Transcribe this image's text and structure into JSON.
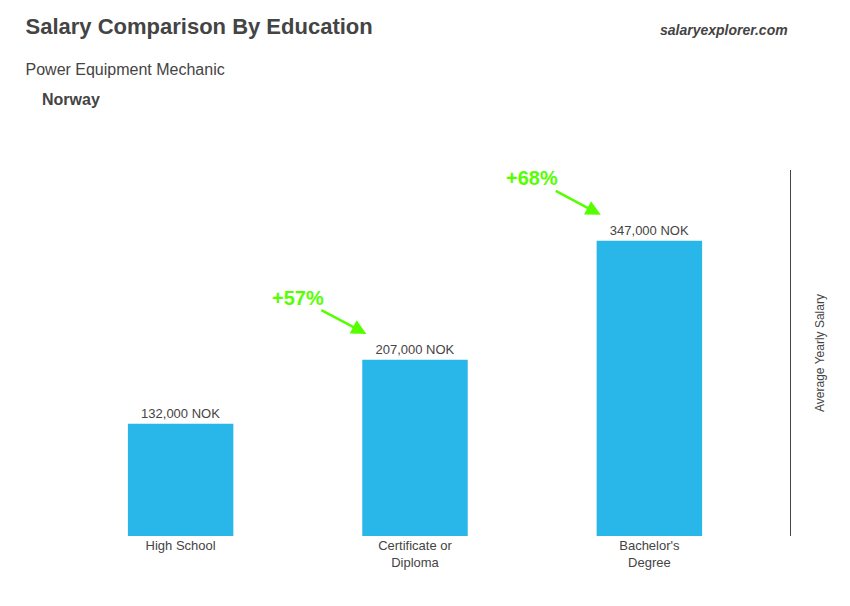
{
  "chart_data": {
    "type": "bar",
    "title": "Salary Comparison By Education",
    "subtitle": "Power Equipment Mechanic",
    "categories": [
      "High School",
      "Certificate or\nDiploma",
      "Bachelor's\nDegree"
    ],
    "values": [
      132000,
      207000,
      347000
    ],
    "value_labels": [
      "132,000 NOK",
      "207,000 NOK",
      "347,000 NOK"
    ],
    "data_labels": true,
    "color": "#29b6e8",
    "ylabel": "Average Yearly Salary",
    "ylim": [
      0,
      430000
    ],
    "tick_labels": "x",
    "grid": false,
    "annotations": [
      {
        "text": "Norway"
      },
      {
        "text": "salaryexplorer.com"
      },
      {
        "text": "+57%",
        "from": "High School",
        "to": "Certificate or\nDiploma",
        "color": "#55ff00"
      },
      {
        "text": "+68%",
        "from": "Certificate or\nDiploma",
        "to": "Bachelor's\nDegree",
        "color": "#55ff00"
      }
    ]
  }
}
